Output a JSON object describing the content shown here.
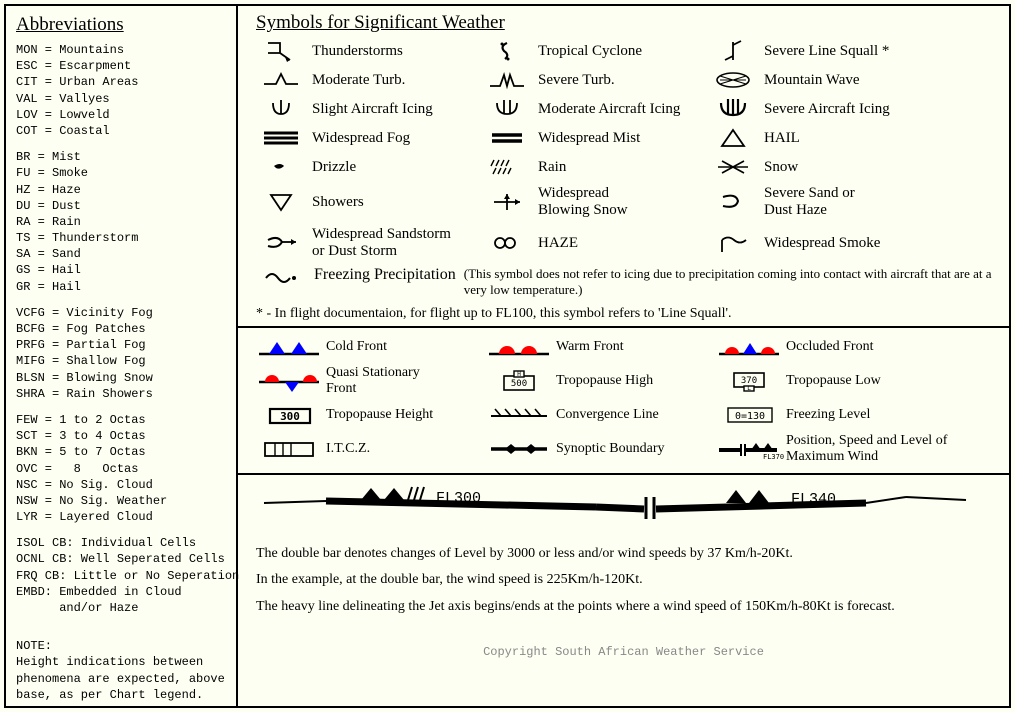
{
  "colors": {
    "bg": "#fdfff2",
    "fg": "#000000",
    "red": "#ff0000",
    "blue": "#0000ff",
    "grey": "#888888"
  },
  "left": {
    "title": "Abbreviations",
    "block1": "MON = Mountains\nESC = Escarpment\nCIT = Urban Areas\nVAL = Vallyes\nLOV = Lowveld\nCOT = Coastal",
    "block2": "BR = Mist\nFU = Smoke\nHZ = Haze\nDU = Dust\nRA = Rain\nTS = Thunderstorm\nSA = Sand\nGS = Hail\nGR = Hail",
    "block3": "VCFG = Vicinity Fog\nBCFG = Fog Patches\nPRFG = Partial Fog\nMIFG = Shallow Fog\nBLSN = Blowing Snow\nSHRA = Rain Showers",
    "block4": "FEW = 1 to 2 Octas\nSCT = 3 to 4 Octas\nBKN = 5 to 7 Octas\nOVC =   8   Octas\nNSC = No Sig. Cloud\nNSW = No Sig. Weather\nLYR = Layered Cloud",
    "block5": "ISOL CB: Individual Cells\nOCNL CB: Well Seperated Cells\nFRQ CB: Little or No Seperation\nEMBD: Embedded in Cloud\n      and/or Haze",
    "note_label": "NOTE:",
    "note": "Height indications between phenomena are expected, above base, as per Chart legend."
  },
  "top": {
    "title": "Symbols for Significant Weather",
    "rows": [
      [
        {
          "icon": "thunderstorm",
          "label": "Thunderstorms"
        },
        {
          "icon": "cyclone",
          "label": "Tropical Cyclone"
        },
        {
          "icon": "linesquall",
          "label": "Severe Line Squall *"
        }
      ],
      [
        {
          "icon": "modturb",
          "label": "Moderate Turb."
        },
        {
          "icon": "sevturb",
          "label": "Severe Turb."
        },
        {
          "icon": "mtnwave",
          "label": "Mountain Wave"
        }
      ],
      [
        {
          "icon": "icing1",
          "label": "Slight Aircraft Icing"
        },
        {
          "icon": "icing2",
          "label": "Moderate Aircraft Icing"
        },
        {
          "icon": "icing3",
          "label": "Severe Aircraft Icing"
        }
      ],
      [
        {
          "icon": "fog",
          "label": "Widespread Fog"
        },
        {
          "icon": "mist",
          "label": "Widespread Mist"
        },
        {
          "icon": "hail",
          "label": "HAIL"
        }
      ],
      [
        {
          "icon": "drizzle",
          "label": "Drizzle"
        },
        {
          "icon": "rain",
          "label": "Rain"
        },
        {
          "icon": "snow",
          "label": "Snow"
        }
      ],
      [
        {
          "icon": "showers",
          "label": "Showers"
        },
        {
          "icon": "blowsnow",
          "label": "Widespread\n Blowing Snow"
        },
        {
          "icon": "sanddust",
          "label": "Severe Sand or\nDust Haze"
        }
      ],
      [
        {
          "icon": "sandstorm",
          "label": "Widespread Sandstorm\nor Dust Storm"
        },
        {
          "icon": "haze",
          "label": "HAZE"
        },
        {
          "icon": "smoke",
          "label": "Widespread Smoke"
        }
      ]
    ],
    "freezing": {
      "icon": "freezing",
      "label": "Freezing Precipitation",
      "annot": "(This symbol does not refer to icing due to precipitation coming into contact with aircraft that are at a very low temperature.)"
    },
    "footnote": "*  -  In flight documentaion, for flight up to FL100, this symbol refers to 'Line Squall'."
  },
  "mid": {
    "rows": [
      [
        {
          "icon": "cold",
          "label": "Cold Front"
        },
        {
          "icon": "warm",
          "label": "Warm Front"
        },
        {
          "icon": "occluded",
          "label": "Occluded Front"
        }
      ],
      [
        {
          "icon": "quasi",
          "label": "Quasi Stationary\n     Front"
        },
        {
          "icon": "trop-h",
          "label": "Tropopause High",
          "text": "500"
        },
        {
          "icon": "trop-l",
          "label": "Tropopause Low",
          "text": "370"
        }
      ],
      [
        {
          "icon": "trop-height",
          "label": "Tropopause Height",
          "text": "300"
        },
        {
          "icon": "convergence",
          "label": "Convergence Line"
        },
        {
          "icon": "freezelevel",
          "label": "Freezing Level",
          "text": "0=130"
        }
      ],
      [
        {
          "icon": "itcz",
          "label": "I.T.C.Z."
        },
        {
          "icon": "synoptic",
          "label": "Synoptic Boundary"
        },
        {
          "icon": "maxwind",
          "label": "Position, Speed and Level of\nMaximum Wind",
          "text": "FL370"
        }
      ]
    ]
  },
  "bot": {
    "fl_left": "FL300",
    "fl_right": "FL340",
    "p1": "The double bar denotes changes of Level by 3000 or less and/or wind speeds by 37 Km/h-20Kt.",
    "p2": "In the example, at the double bar, the wind speed is 225Km/h-120Kt.",
    "p3": "The heavy line delineating the Jet axis begins/ends at the points where a wind speed of 150Km/h-80Kt is forecast.",
    "copyright": "Copyright South African Weather Service"
  }
}
